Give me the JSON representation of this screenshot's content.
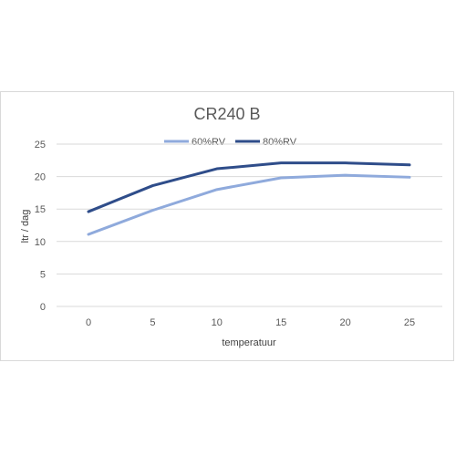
{
  "chart_data": {
    "type": "line",
    "title": "CR240 B",
    "xlabel": "temperatuur",
    "ylabel": "ltr / dag",
    "categories": [
      "0",
      "5",
      "10",
      "15",
      "20",
      "25"
    ],
    "ylim": [
      0,
      25
    ],
    "yticks": [
      "0",
      "5",
      "10",
      "15",
      "20",
      "25"
    ],
    "grid": true,
    "legend_position": "top",
    "series": [
      {
        "name": "60%RV",
        "color": "#8faadc",
        "values": [
          11.1,
          14.8,
          18.0,
          19.8,
          20.2,
          19.9
        ]
      },
      {
        "name": "80%RV",
        "color": "#2f4d8a",
        "values": [
          14.6,
          18.6,
          21.2,
          22.1,
          22.1,
          21.8
        ]
      }
    ]
  }
}
